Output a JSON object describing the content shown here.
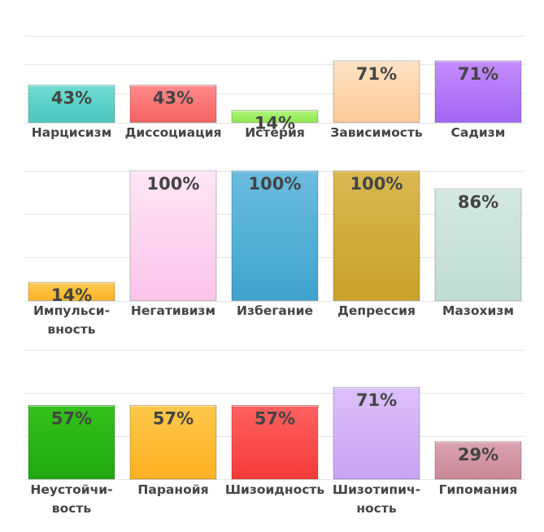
{
  "chart_data": [
    {
      "type": "bar",
      "ylim": [
        0,
        100
      ],
      "grid": true,
      "categories": [
        "Нарцисизм",
        "Диссоциация",
        "Истерия",
        "Зависимость",
        "Садизм"
      ],
      "category_lines": [
        [
          "Нарцисизм"
        ],
        [
          "Диссоциация"
        ],
        [
          "Истерия"
        ],
        [
          "Зависимость"
        ],
        [
          "Садизм"
        ]
      ],
      "values": [
        43,
        43,
        14,
        71,
        71
      ],
      "value_labels": [
        "43%",
        "43%",
        "14%",
        "71%",
        "71%"
      ],
      "colors": [
        [
          "#6fdcd2",
          "#4ac7be"
        ],
        [
          "#ff8a8a",
          "#f56262"
        ],
        [
          "#b4f57e",
          "#8be84e"
        ],
        [
          "#ffe2c4",
          "#fcca98"
        ],
        [
          "#c48cfc",
          "#a266f5"
        ]
      ]
    },
    {
      "type": "bar",
      "ylim": [
        0,
        100
      ],
      "grid": true,
      "categories": [
        "Импульсивность",
        "Негативизм",
        "Избегание",
        "Депрессия",
        "Мазохизм"
      ],
      "category_lines": [
        [
          "Импульси-",
          "вность"
        ],
        [
          "Негативизм"
        ],
        [
          "Избегание"
        ],
        [
          "Депрессия"
        ],
        [
          "Мазохизм"
        ]
      ],
      "values": [
        14,
        100,
        100,
        100,
        86
      ],
      "value_labels": [
        "14%",
        "100%",
        "100%",
        "100%",
        "86%"
      ],
      "colors": [
        [
          "#ffcb50",
          "#f9b323"
        ],
        [
          "#ffe6f6",
          "#fcc4ea"
        ],
        [
          "#6cbcdf",
          "#3fa3ce"
        ],
        [
          "#d8b850",
          "#c9a22a"
        ],
        [
          "#d4e8e0",
          "#c0ddd2"
        ]
      ]
    },
    {
      "type": "bar",
      "ylim": [
        0,
        100
      ],
      "grid": true,
      "categories": [
        "Неустойчивость",
        "Паранойя",
        "Шизоидность",
        "Шизотипичность",
        "Гипомания"
      ],
      "category_lines": [
        [
          "Неустойчи-",
          "вость"
        ],
        [
          "Паранойя"
        ],
        [
          "Шизоидность"
        ],
        [
          "Шизотипич-",
          "ность"
        ],
        [
          "Гипомания"
        ]
      ],
      "values": [
        57,
        57,
        57,
        71,
        29
      ],
      "value_labels": [
        "57%",
        "57%",
        "57%",
        "71%",
        "29%"
      ],
      "colors": [
        [
          "#33c219",
          "#1fa80f"
        ],
        [
          "#ffc84a",
          "#feb024"
        ],
        [
          "#ff6161",
          "#f53a3a"
        ],
        [
          "#dcc0fa",
          "#c8a4f3"
        ],
        [
          "#dba3b1",
          "#c98896"
        ]
      ]
    }
  ]
}
